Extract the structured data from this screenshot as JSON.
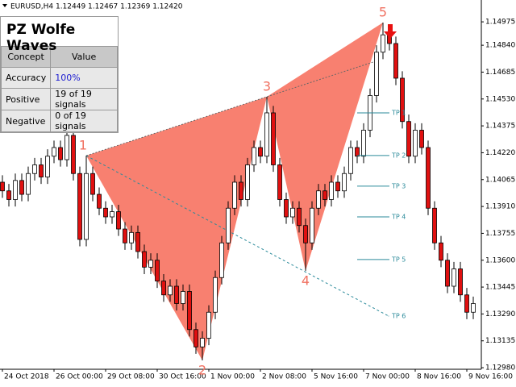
{
  "chart_data": {
    "type": "candlestick",
    "title": "EURUSD,H4  1.12449 1.12467 1.12369 1.12420",
    "open": [
      1.1405,
      1.14,
      1.1395,
      1.1406,
      1.1398,
      1.141,
      1.1415,
      1.1408,
      1.142,
      1.1425,
      1.1418,
      1.1432,
      1.141,
      1.1372,
      1.141,
      1.1398,
      1.139,
      1.1385,
      1.1388,
      1.1378,
      1.137,
      1.1376,
      1.1365,
      1.1356,
      1.136,
      1.1348,
      1.134,
      1.1345,
      1.1335,
      1.1342,
      1.132,
      1.131,
      1.1315,
      1.133,
      1.135,
      1.137,
      1.139,
      1.1405,
      1.1395,
      1.1415,
      1.1425,
      1.142,
      1.1445,
      1.1415,
      1.1395,
      1.1385,
      1.139,
      1.138,
      1.137,
      1.139,
      1.14,
      1.1395,
      1.1405,
      1.14,
      1.141,
      1.1425,
      1.142,
      1.1435,
      1.1455,
      1.148,
      1.149,
      1.1485,
      1.1465,
      1.144,
      1.142,
      1.1435,
      1.1425,
      1.139,
      1.137,
      1.136,
      1.1345,
      1.1355,
      1.134,
      1.133
    ],
    "high": [
      1.1409,
      1.1404,
      1.141,
      1.141,
      1.1414,
      1.1419,
      1.1419,
      1.1424,
      1.1429,
      1.1429,
      1.1436,
      1.1436,
      1.1414,
      1.14203,
      1.1414,
      1.1402,
      1.1394,
      1.1392,
      1.1392,
      1.1382,
      1.138,
      1.138,
      1.1369,
      1.1364,
      1.1364,
      1.1352,
      1.1349,
      1.1349,
      1.1346,
      1.1346,
      1.1324,
      1.1319,
      1.1334,
      1.1354,
      1.1374,
      1.1394,
      1.1409,
      1.1409,
      1.1419,
      1.1429,
      1.1429,
      1.14543,
      1.1449,
      1.1419,
      1.1399,
      1.1394,
      1.1394,
      1.1384,
      1.1394,
      1.1404,
      1.1404,
      1.1409,
      1.1409,
      1.1414,
      1.1429,
      1.1429,
      1.1439,
      1.1459,
      1.1484,
      1.14971,
      1.1494,
      1.1489,
      1.1469,
      1.1444,
      1.1439,
      1.1439,
      1.1429,
      1.1394,
      1.1374,
      1.1364,
      1.1359,
      1.1359,
      1.1344,
      1.1339
    ],
    "low": [
      1.1396,
      1.1391,
      1.1391,
      1.1394,
      1.1394,
      1.1406,
      1.1404,
      1.1404,
      1.1416,
      1.1414,
      1.1414,
      1.1406,
      1.1368,
      1.1368,
      1.1394,
      1.1386,
      1.1381,
      1.1381,
      1.1374,
      1.1366,
      1.1366,
      1.1361,
      1.1352,
      1.1352,
      1.1344,
      1.1336,
      1.1336,
      1.1331,
      1.1331,
      1.1316,
      1.1306,
      1.13022,
      1.1311,
      1.1326,
      1.1346,
      1.1366,
      1.1386,
      1.1391,
      1.1391,
      1.1411,
      1.1416,
      1.1416,
      1.1411,
      1.1391,
      1.1381,
      1.1381,
      1.1376,
      1.13539,
      1.1366,
      1.1386,
      1.1391,
      1.1391,
      1.1396,
      1.1396,
      1.1406,
      1.1416,
      1.1416,
      1.1431,
      1.1451,
      1.1476,
      1.1481,
      1.1461,
      1.1436,
      1.1416,
      1.1416,
      1.1421,
      1.1386,
      1.1366,
      1.1356,
      1.1341,
      1.1341,
      1.1336,
      1.1326,
      1.1326
    ],
    "close": [
      1.14,
      1.1395,
      1.1406,
      1.1398,
      1.141,
      1.1415,
      1.1408,
      1.142,
      1.1425,
      1.1418,
      1.1432,
      1.141,
      1.1372,
      1.141,
      1.1398,
      1.139,
      1.1385,
      1.1388,
      1.1378,
      1.137,
      1.1376,
      1.1365,
      1.1356,
      1.136,
      1.1348,
      1.134,
      1.1345,
      1.1335,
      1.1342,
      1.132,
      1.131,
      1.1315,
      1.133,
      1.135,
      1.137,
      1.139,
      1.1405,
      1.1395,
      1.1415,
      1.1425,
      1.142,
      1.1445,
      1.1415,
      1.1395,
      1.1385,
      1.139,
      1.138,
      1.137,
      1.139,
      1.14,
      1.1395,
      1.1405,
      1.14,
      1.141,
      1.1425,
      1.142,
      1.1435,
      1.1455,
      1.148,
      1.149,
      1.1485,
      1.1465,
      1.144,
      1.142,
      1.1435,
      1.1425,
      1.139,
      1.137,
      1.136,
      1.1345,
      1.1355,
      1.134,
      1.133,
      1.1335
    ],
    "xlim": [
      -0.375,
      74.25
    ],
    "ylim": [
      1.12971,
      1.15101
    ],
    "xticks": [
      {
        "value": 0,
        "label": "24 Oct 2018"
      },
      {
        "value": 8,
        "label": "26 Oct 00:00"
      },
      {
        "value": 16,
        "label": "29 Oct 08:00"
      },
      {
        "value": 24,
        "label": "30 Oct 16:00"
      },
      {
        "value": 32,
        "label": "1 Nov 00:00"
      },
      {
        "value": 40,
        "label": "2 Nov 08:00"
      },
      {
        "value": 48,
        "label": "5 Nov 16:00"
      },
      {
        "value": 56,
        "label": "7 Nov 00:00"
      },
      {
        "value": 64,
        "label": "8 Nov 16:00"
      },
      {
        "value": 72,
        "label": "9 Nov 16:00"
      }
    ],
    "yticks": [
      1.14975,
      {
        "value": 1.1484,
        "label": "1.14840"
      },
      1.14685,
      {
        "value": 1.1453,
        "label": "1.14530"
      },
      1.14375,
      {
        "value": 1.1422,
        "label": "1.14220"
      },
      1.14065,
      {
        "value": 1.1391,
        "label": "1.13910"
      },
      1.13755,
      {
        "value": 1.136,
        "label": "1.13600"
      },
      1.13445,
      {
        "value": 1.1329,
        "label": "1.13290"
      },
      1.13135,
      {
        "value": 1.1298,
        "label": "1.12980"
      }
    ],
    "bull_color": "#ffffff",
    "bear_color": "#e01010",
    "pattern_color": "#f88070",
    "points": [
      {
        "label": "1",
        "index": 13,
        "price": 1.14203
      },
      {
        "label": "2",
        "index": 31,
        "price": 1.13022
      },
      {
        "label": "3",
        "index": 41,
        "price": 1.14543
      },
      {
        "label": "4",
        "index": 47,
        "price": 1.13539
      },
      {
        "label": "5",
        "index": 59,
        "price": 1.14971
      }
    ],
    "targets": [
      {
        "name": "TP 1",
        "price": 1.1445
      },
      {
        "name": "TP 2",
        "price": 1.14204
      },
      {
        "name": "TP 3",
        "price": 1.14027
      },
      {
        "name": "TP 4",
        "price": 1.1385
      },
      {
        "name": "TP 5",
        "price": 1.13604
      },
      {
        "name": "TP 6",
        "price": 1.13278
      }
    ]
  },
  "panel": {
    "title": "PZ Wolfe Waves",
    "columns": [
      "Concept",
      "Value"
    ],
    "rows": [
      [
        "Accuracy",
        "100%"
      ],
      [
        "Positive",
        "19 of 19 signals"
      ],
      [
        "Negative",
        "0 of 19 signals"
      ]
    ]
  }
}
